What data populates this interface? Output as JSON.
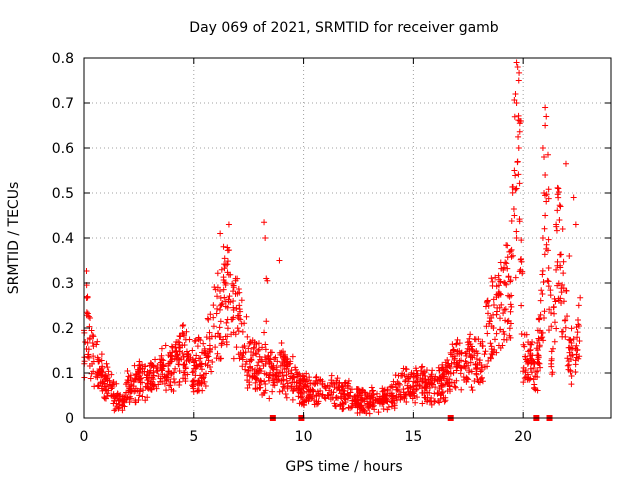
{
  "chart_data": {
    "type": "scatter",
    "title": "Day 069 of 2021, SRMTID for receiver gamb",
    "xlabel": "GPS time / hours",
    "ylabel": "SRMTID / TECUs",
    "xlim": [
      0,
      24
    ],
    "ylim": [
      0,
      0.8
    ],
    "xticks": [
      0,
      5,
      10,
      15,
      20
    ],
    "xtick_labels": [
      "0",
      "5",
      "10",
      "15",
      "20"
    ],
    "yticks": [
      0,
      0.1,
      0.2,
      0.3,
      0.4,
      0.5,
      0.6,
      0.7,
      0.8
    ],
    "ytick_labels": [
      "0",
      "0.1",
      "0.2",
      "0.3",
      "0.4",
      "0.5",
      "0.6",
      "0.7",
      "0.8"
    ],
    "grid": true,
    "marker": "+",
    "color": "#ff0000",
    "series": [
      {
        "name": "SRMTID",
        "profile": [
          [
            0.0,
            0.14
          ],
          [
            0.1,
            0.24
          ],
          [
            0.3,
            0.15
          ],
          [
            0.6,
            0.11
          ],
          [
            1.0,
            0.08
          ],
          [
            1.4,
            0.05
          ],
          [
            1.7,
            0.03
          ],
          [
            2.0,
            0.07
          ],
          [
            2.5,
            0.08
          ],
          [
            3.0,
            0.09
          ],
          [
            3.5,
            0.11
          ],
          [
            4.0,
            0.11
          ],
          [
            4.5,
            0.14
          ],
          [
            5.0,
            0.12
          ],
          [
            5.5,
            0.12
          ],
          [
            6.0,
            0.22
          ],
          [
            6.5,
            0.27
          ],
          [
            7.0,
            0.22
          ],
          [
            7.5,
            0.13
          ],
          [
            8.0,
            0.11
          ],
          [
            8.5,
            0.1
          ],
          [
            9.0,
            0.11
          ],
          [
            9.5,
            0.09
          ],
          [
            10.0,
            0.06
          ],
          [
            10.5,
            0.06
          ],
          [
            11.0,
            0.06
          ],
          [
            11.5,
            0.06
          ],
          [
            12.0,
            0.05
          ],
          [
            12.5,
            0.04
          ],
          [
            13.0,
            0.04
          ],
          [
            13.5,
            0.04
          ],
          [
            14.0,
            0.05
          ],
          [
            14.5,
            0.07
          ],
          [
            15.0,
            0.07
          ],
          [
            15.5,
            0.07
          ],
          [
            16.0,
            0.07
          ],
          [
            16.5,
            0.09
          ],
          [
            17.0,
            0.12
          ],
          [
            17.5,
            0.12
          ],
          [
            18.0,
            0.13
          ],
          [
            18.5,
            0.21
          ],
          [
            19.0,
            0.25
          ],
          [
            19.4,
            0.3
          ],
          [
            19.6,
            0.5
          ],
          [
            19.8,
            0.58
          ],
          [
            20.0,
            0.16
          ],
          [
            20.3,
            0.12
          ],
          [
            20.6,
            0.1
          ],
          [
            20.9,
            0.25
          ],
          [
            21.1,
            0.5
          ],
          [
            21.3,
            0.1
          ],
          [
            21.6,
            0.4
          ],
          [
            21.8,
            0.28
          ],
          [
            22.1,
            0.14
          ],
          [
            22.4,
            0.16
          ],
          [
            22.6,
            0.2
          ]
        ],
        "outliers": [
          [
            8.2,
            0.435
          ],
          [
            8.25,
            0.4
          ],
          [
            8.3,
            0.31
          ],
          [
            8.35,
            0.305
          ],
          [
            8.9,
            0.35
          ],
          [
            8.2,
            0.19
          ],
          [
            8.3,
            0.215
          ],
          [
            6.6,
            0.43
          ],
          [
            6.2,
            0.41
          ],
          [
            19.7,
            0.79
          ],
          [
            19.75,
            0.78
          ],
          [
            19.8,
            0.75
          ],
          [
            19.65,
            0.72
          ],
          [
            19.7,
            0.7
          ],
          [
            19.9,
            0.66
          ],
          [
            19.8,
            0.6
          ],
          [
            19.75,
            0.57
          ],
          [
            19.6,
            0.55
          ],
          [
            19.7,
            0.51
          ],
          [
            19.6,
            0.45
          ],
          [
            19.7,
            0.4
          ],
          [
            21.0,
            0.69
          ],
          [
            21.05,
            0.67
          ],
          [
            21.0,
            0.65
          ],
          [
            20.9,
            0.6
          ],
          [
            20.95,
            0.58
          ],
          [
            21.0,
            0.54
          ],
          [
            20.95,
            0.5
          ],
          [
            21.0,
            0.45
          ],
          [
            20.9,
            0.4
          ],
          [
            21.6,
            0.51
          ],
          [
            21.7,
            0.47
          ],
          [
            21.8,
            0.42
          ],
          [
            21.95,
            0.565
          ],
          [
            22.3,
            0.49
          ],
          [
            22.4,
            0.43
          ],
          [
            22.1,
            0.36
          ],
          [
            21.5,
            0.43
          ],
          [
            21.65,
            0.44
          ]
        ],
        "zeros": [
          8.6,
          9.9,
          16.7,
          20.6,
          21.2
        ]
      }
    ]
  }
}
